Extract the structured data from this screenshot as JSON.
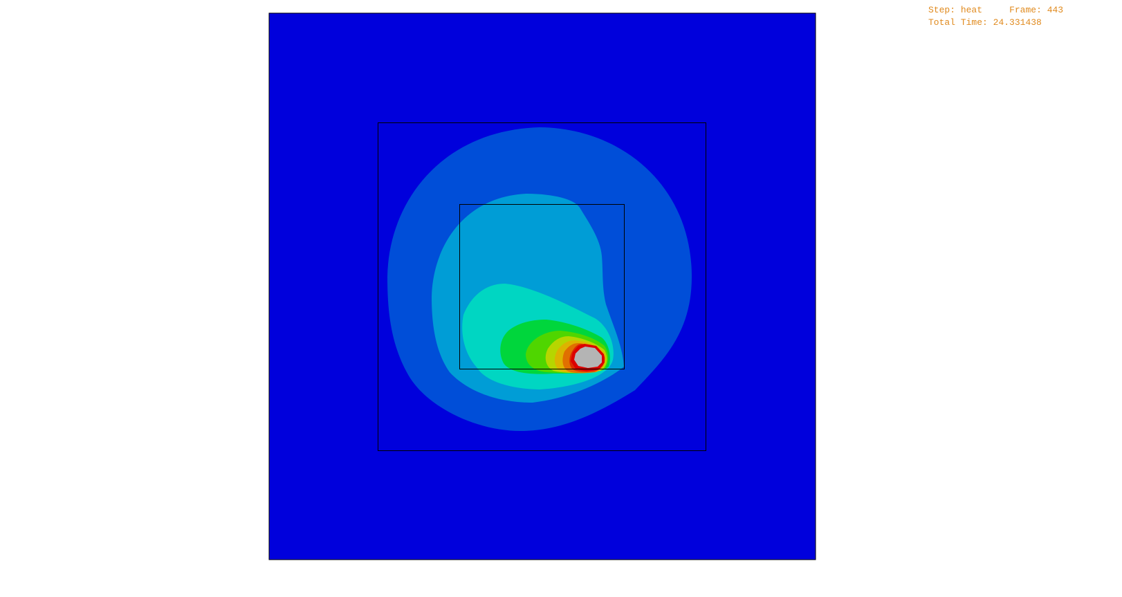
{
  "status": {
    "step_label": "Step:",
    "step_value": "heat",
    "frame_label": "Frame:",
    "frame_value": "443",
    "time_label": "Total Time:",
    "time_value": "24.331438",
    "text_color": "#e08a1e"
  },
  "viewport": {
    "background": "#ffffff",
    "outline_color": "#000000",
    "missing_color": "#b4b4b4",
    "contour_colors": [
      "#0000dc",
      "#004ed8",
      "#009dd6",
      "#00d6c2",
      "#00d63c",
      "#4fd600",
      "#b6d600",
      "#dcb400",
      "#e07000",
      "#dc2a00",
      "#dc0000"
    ]
  }
}
